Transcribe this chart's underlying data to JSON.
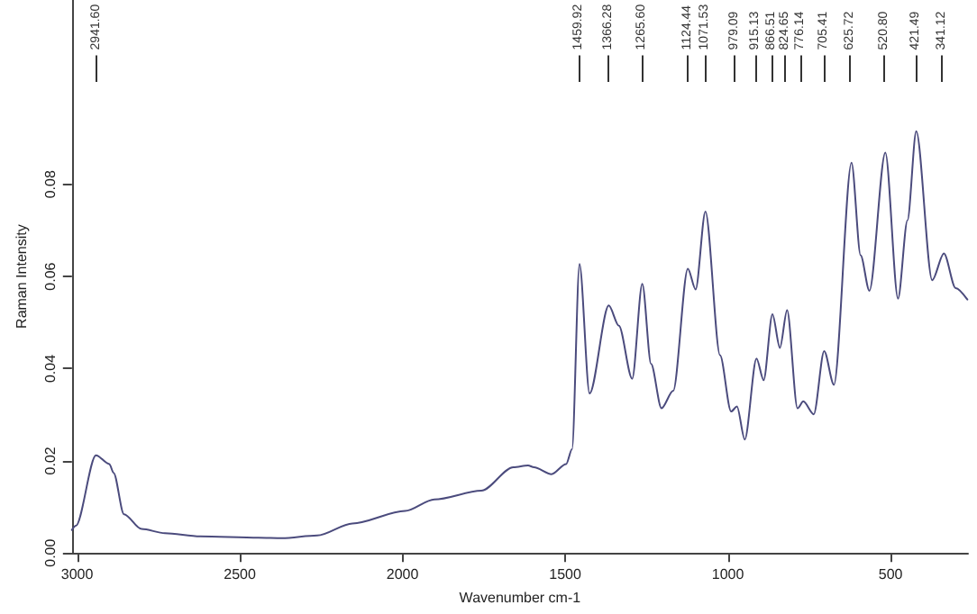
{
  "chart_data": {
    "type": "line",
    "xlabel": "Wavenumber cm-1",
    "ylabel": "Raman Intensity",
    "xlim": [
      3016,
      262
    ],
    "xticks": [
      3000,
      2500,
      2000,
      1500,
      1000,
      500
    ],
    "ylim": [
      0,
      0.12
    ],
    "yticks": [
      {
        "value": 0,
        "label": "0.00"
      },
      {
        "value": 0.02,
        "label": "0.02"
      },
      {
        "value": 0.04,
        "label": "0.04"
      },
      {
        "value": 0.06,
        "label": "0.06"
      },
      {
        "value": 0.08,
        "label": "0.08"
      }
    ],
    "grid": false,
    "marker": "none",
    "line_style": "solid",
    "series": [
      {
        "color": "#4b4b7d",
        "x": [
          3016,
          3004,
          2942,
          2901,
          2888,
          2856,
          2802,
          2730,
          2622,
          2443,
          2370,
          2262,
          2154,
          1992,
          1902,
          1758,
          1659,
          1614,
          1596,
          1542,
          1497,
          1479,
          1456,
          1425,
          1366,
          1335,
          1294,
          1263,
          1236,
          1204,
          1168,
          1123,
          1099,
          1069,
          1024,
          990,
          972,
          948,
          912,
          890,
          863,
          840,
          818,
          786,
          768,
          736,
          704,
          674,
          620,
          592,
          565,
          516,
          477,
          448,
          421,
          372,
          336,
          300,
          264
        ],
        "values": [
          0.005,
          0.0059,
          0.0212,
          0.0193,
          0.0174,
          0.0084,
          0.0052,
          0.0043,
          0.0036,
          0.0033,
          0.0032,
          0.0038,
          0.0064,
          0.0091,
          0.0116,
          0.0135,
          0.0186,
          0.019,
          0.0186,
          0.0171,
          0.0193,
          0.0225,
          0.0627,
          0.0346,
          0.0537,
          0.0493,
          0.0378,
          0.0584,
          0.041,
          0.0314,
          0.0352,
          0.0617,
          0.0572,
          0.0741,
          0.0429,
          0.0307,
          0.0318,
          0.0246,
          0.0422,
          0.0375,
          0.0518,
          0.0445,
          0.0527,
          0.0314,
          0.0329,
          0.0301,
          0.0438,
          0.0365,
          0.0847,
          0.0646,
          0.0569,
          0.0869,
          0.0552,
          0.0722,
          0.0915,
          0.0592,
          0.065,
          0.0575,
          0.055
        ]
      }
    ],
    "ref_lines": [
      {
        "axis": "x",
        "value": 2941.6,
        "label": "2941.60"
      },
      {
        "axis": "x",
        "value": 1459.92,
        "label": "1459.92"
      },
      {
        "axis": "x",
        "value": 1366.28,
        "label": "1366.28"
      },
      {
        "axis": "x",
        "value": 1265.6,
        "label": "1265.60"
      },
      {
        "axis": "x",
        "value": 1124.44,
        "label": "1124.44"
      },
      {
        "axis": "x",
        "value": 1071.53,
        "label": "1071.53"
      },
      {
        "axis": "x",
        "value": 979.09,
        "label": "979.09"
      },
      {
        "axis": "x",
        "value": 915.13,
        "label": "915.13"
      },
      {
        "axis": "x",
        "value": 866.51,
        "label": "866.51"
      },
      {
        "axis": "x",
        "value": 824.65,
        "label": "824.65"
      },
      {
        "axis": "x",
        "value": 776.14,
        "label": "776.14"
      },
      {
        "axis": "x",
        "value": 705.41,
        "label": "705.41"
      },
      {
        "axis": "x",
        "value": 625.72,
        "label": "625.72"
      },
      {
        "axis": "x",
        "value": 520.8,
        "label": "520.80"
      },
      {
        "axis": "x",
        "value": 421.49,
        "label": "421.49"
      },
      {
        "axis": "x",
        "value": 341.12,
        "label": "341.12"
      }
    ]
  }
}
